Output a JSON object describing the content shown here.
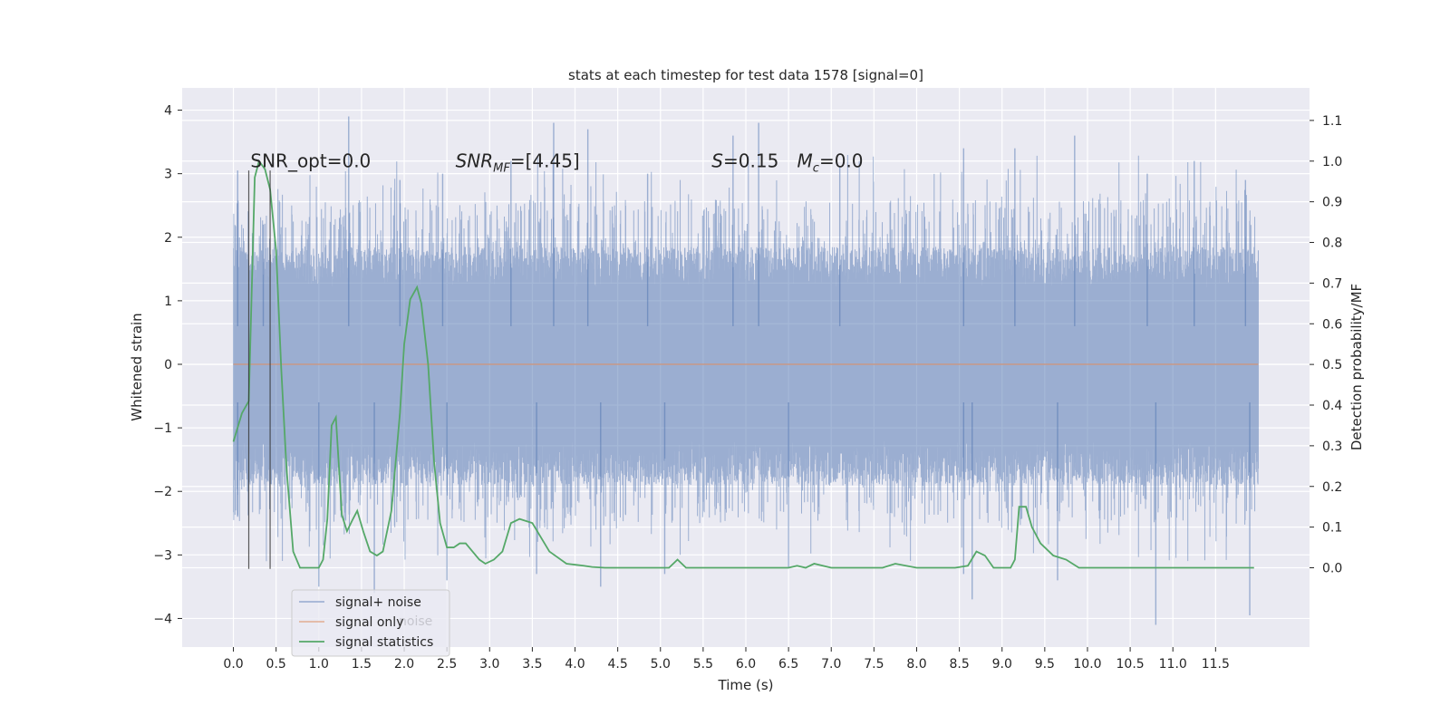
{
  "chart_data": {
    "type": "line",
    "title": "stats at each timestep for test data 1578 [signal=0]",
    "xlabel": "Time (s)",
    "ylabel": "Whitened strain",
    "y2label": "Detection probability/MF",
    "xlim": [
      -0.6,
      12.6
    ],
    "ylim": [
      -4.45,
      4.35
    ],
    "y2lim": [
      -0.195,
      1.18
    ],
    "x_ticks": [
      0.0,
      0.5,
      1.0,
      1.5,
      2.0,
      2.5,
      3.0,
      3.5,
      4.0,
      4.5,
      5.0,
      5.5,
      6.0,
      6.5,
      7.0,
      7.5,
      8.0,
      8.5,
      9.0,
      9.5,
      10.0,
      10.5,
      11.0,
      11.5
    ],
    "x_tick_labels": [
      "0.0",
      "0.5",
      "1.0",
      "1.5",
      "2.0",
      "2.5",
      "3.0",
      "3.5",
      "4.0",
      "4.5",
      "5.0",
      "5.5",
      "6.0",
      "6.5",
      "7.0",
      "7.5",
      "8.0",
      "8.5",
      "9.0",
      "9.5",
      "10.0",
      "10.5",
      "11.0",
      "11.5"
    ],
    "y_ticks": [
      -4,
      -3,
      -2,
      -1,
      0,
      1,
      2,
      3,
      4
    ],
    "y_tick_labels": [
      "−4",
      "−3",
      "−2",
      "−1",
      "0",
      "1",
      "2",
      "3",
      "4"
    ],
    "y2_ticks": [
      0.0,
      0.1,
      0.2,
      0.3,
      0.4,
      0.5,
      0.6,
      0.7,
      0.8,
      0.9,
      1.0,
      1.1
    ],
    "y2_tick_labels": [
      "0.0",
      "0.1",
      "0.2",
      "0.3",
      "0.4",
      "0.5",
      "0.6",
      "0.7",
      "0.8",
      "0.9",
      "1.0",
      "1.1"
    ],
    "grid": true,
    "legend_position": "lower-left",
    "legend": [
      {
        "label": "signal+ noise",
        "color": "#4c72b0"
      },
      {
        "label": "signal only",
        "color": "#dd8452"
      },
      {
        "label": "signal statistics",
        "color": "#55a868"
      }
    ],
    "legend_ghost_text": "noise",
    "annotations": [
      {
        "name": "snr-opt",
        "text": "SNR_opt=0.0",
        "x": 0.2,
        "y": 3.1
      },
      {
        "name": "snr-mf",
        "text": "SNR_MF=[4.45]",
        "x": 2.6,
        "y": 3.1
      },
      {
        "name": "s-stat",
        "text": "S=0.15",
        "x": 5.6,
        "y": 3.1
      },
      {
        "name": "chirp-mass",
        "text": "M_c=0.0",
        "x": 6.6,
        "y": 3.1
      }
    ],
    "vertical_markers": [
      {
        "x": 0.18,
        "y_top": 3.05,
        "y_bottom": -3.22
      },
      {
        "x": 0.43,
        "y_top": 3.05,
        "y_bottom": -3.22
      }
    ],
    "series": [
      {
        "name": "signal+ noise",
        "color": "#4c72b0",
        "opacity": 0.5,
        "x_range": [
          0.0,
          12.0
        ],
        "envelope_upper_typical": 1.8,
        "envelope_lower_typical": -1.85,
        "peaks": [
          [
            0.05,
            3.05
          ],
          [
            0.35,
            2.2
          ],
          [
            1.35,
            3.9
          ],
          [
            1.95,
            2.9
          ],
          [
            2.45,
            3.0
          ],
          [
            3.25,
            3.2
          ],
          [
            3.75,
            3.8
          ],
          [
            4.15,
            3.7
          ],
          [
            4.85,
            3.0
          ],
          [
            5.85,
            3.6
          ],
          [
            6.15,
            3.8
          ],
          [
            7.1,
            3.1
          ],
          [
            8.55,
            3.4
          ],
          [
            9.15,
            3.4
          ],
          [
            9.85,
            3.6
          ],
          [
            10.7,
            3.0
          ],
          [
            11.25,
            3.2
          ],
          [
            11.85,
            2.9
          ]
        ],
        "troughs": [
          [
            0.05,
            -2.4
          ],
          [
            1.0,
            -3.5
          ],
          [
            1.65,
            -3.6
          ],
          [
            2.5,
            -3.4
          ],
          [
            3.55,
            -3.3
          ],
          [
            4.3,
            -3.5
          ],
          [
            5.05,
            -3.3
          ],
          [
            6.5,
            -3.2
          ],
          [
            8.55,
            -3.3
          ],
          [
            8.65,
            -3.7
          ],
          [
            9.65,
            -3.4
          ],
          [
            10.8,
            -4.1
          ],
          [
            11.9,
            -3.95
          ]
        ]
      },
      {
        "name": "signal only",
        "color": "#dd8452",
        "x": [
          0.0,
          12.0
        ],
        "y": [
          0.0,
          0.0
        ]
      },
      {
        "name": "signal statistics",
        "color": "#55a868",
        "axis": "right",
        "x": [
          0.0,
          0.1,
          0.18,
          0.25,
          0.3,
          0.37,
          0.43,
          0.5,
          0.56,
          0.62,
          0.7,
          0.78,
          0.9,
          1.0,
          1.05,
          1.1,
          1.15,
          1.2,
          1.27,
          1.33,
          1.4,
          1.45,
          1.52,
          1.6,
          1.68,
          1.75,
          1.85,
          1.95,
          2.0,
          2.07,
          2.15,
          2.2,
          2.28,
          2.35,
          2.42,
          2.5,
          2.58,
          2.65,
          2.72,
          2.8,
          2.88,
          2.95,
          3.05,
          3.15,
          3.25,
          3.35,
          3.5,
          3.7,
          3.9,
          4.1,
          4.2,
          4.35,
          4.6,
          4.9,
          5.0,
          5.1,
          5.2,
          5.3,
          5.5,
          5.8,
          6.2,
          6.5,
          6.6,
          6.7,
          6.8,
          7.0,
          7.3,
          7.5,
          7.6,
          7.75,
          8.0,
          8.3,
          8.45,
          8.6,
          8.7,
          8.8,
          8.9,
          9.0,
          9.1,
          9.15,
          9.2,
          9.28,
          9.35,
          9.45,
          9.6,
          9.75,
          9.9,
          10.1,
          10.4,
          11.0,
          11.5,
          11.95
        ],
        "y": [
          0.31,
          0.38,
          0.41,
          0.96,
          1.0,
          0.98,
          0.93,
          0.78,
          0.49,
          0.25,
          0.04,
          0.0,
          0.0,
          0.0,
          0.02,
          0.12,
          0.35,
          0.37,
          0.13,
          0.09,
          0.12,
          0.14,
          0.09,
          0.04,
          0.03,
          0.04,
          0.14,
          0.38,
          0.55,
          0.66,
          0.69,
          0.65,
          0.5,
          0.26,
          0.11,
          0.05,
          0.05,
          0.06,
          0.06,
          0.04,
          0.02,
          0.01,
          0.02,
          0.04,
          0.11,
          0.12,
          0.11,
          0.04,
          0.01,
          0.005,
          0.002,
          0.0,
          0.0,
          0.0,
          0.0,
          0.0,
          0.02,
          0.0,
          0.0,
          0.0,
          0.0,
          0.0,
          0.005,
          0.0,
          0.01,
          0.0,
          0.0,
          0.0,
          0.0,
          0.01,
          0.0,
          0.0,
          0.0,
          0.005,
          0.04,
          0.03,
          0.0,
          0.0,
          0.0,
          0.02,
          0.15,
          0.15,
          0.1,
          0.06,
          0.03,
          0.02,
          0.0,
          0.0,
          0.0,
          0.0,
          0.0,
          0.0
        ]
      }
    ]
  }
}
